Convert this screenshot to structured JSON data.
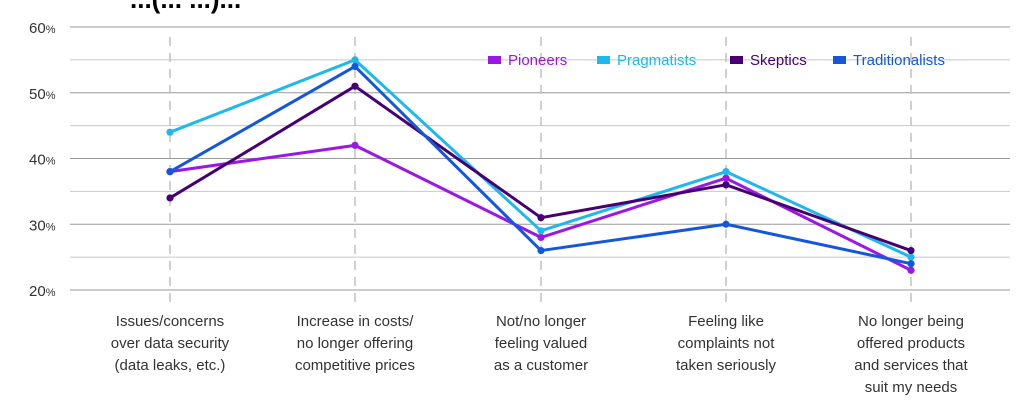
{
  "title_fragment": "...(... ...)...",
  "chart_data": {
    "type": "line",
    "title": "",
    "xlabel": "",
    "ylabel": "",
    "ylim": [
      20,
      60
    ],
    "y_ticks": [
      20,
      30,
      40,
      50,
      60
    ],
    "y_tick_suffix": "%",
    "grid": true,
    "legend_position": "top-right",
    "categories": [
      [
        "Issues/concerns",
        "over data security",
        "(data leaks, etc.)"
      ],
      [
        "Increase in costs/",
        "no longer offering",
        "competitive prices"
      ],
      [
        "Not/no longer",
        "feeling valued",
        "as a customer"
      ],
      [
        "Feeling like",
        "complaints not",
        "taken seriously"
      ],
      [
        "No longer being",
        "offered products",
        "and services that",
        "suit my needs"
      ]
    ],
    "series": [
      {
        "name": "Pioneers",
        "color": "#9b17e6",
        "values": [
          38,
          42,
          28,
          37,
          23
        ]
      },
      {
        "name": "Pragmatists",
        "color": "#1fb8ec",
        "values": [
          44,
          55,
          29,
          38,
          25
        ]
      },
      {
        "name": "Skeptics",
        "color": "#460073",
        "values": [
          34,
          51,
          31,
          36,
          26
        ]
      },
      {
        "name": "Traditionalists",
        "color": "#1457dc",
        "values": [
          38,
          54,
          26,
          30,
          24
        ]
      }
    ]
  }
}
